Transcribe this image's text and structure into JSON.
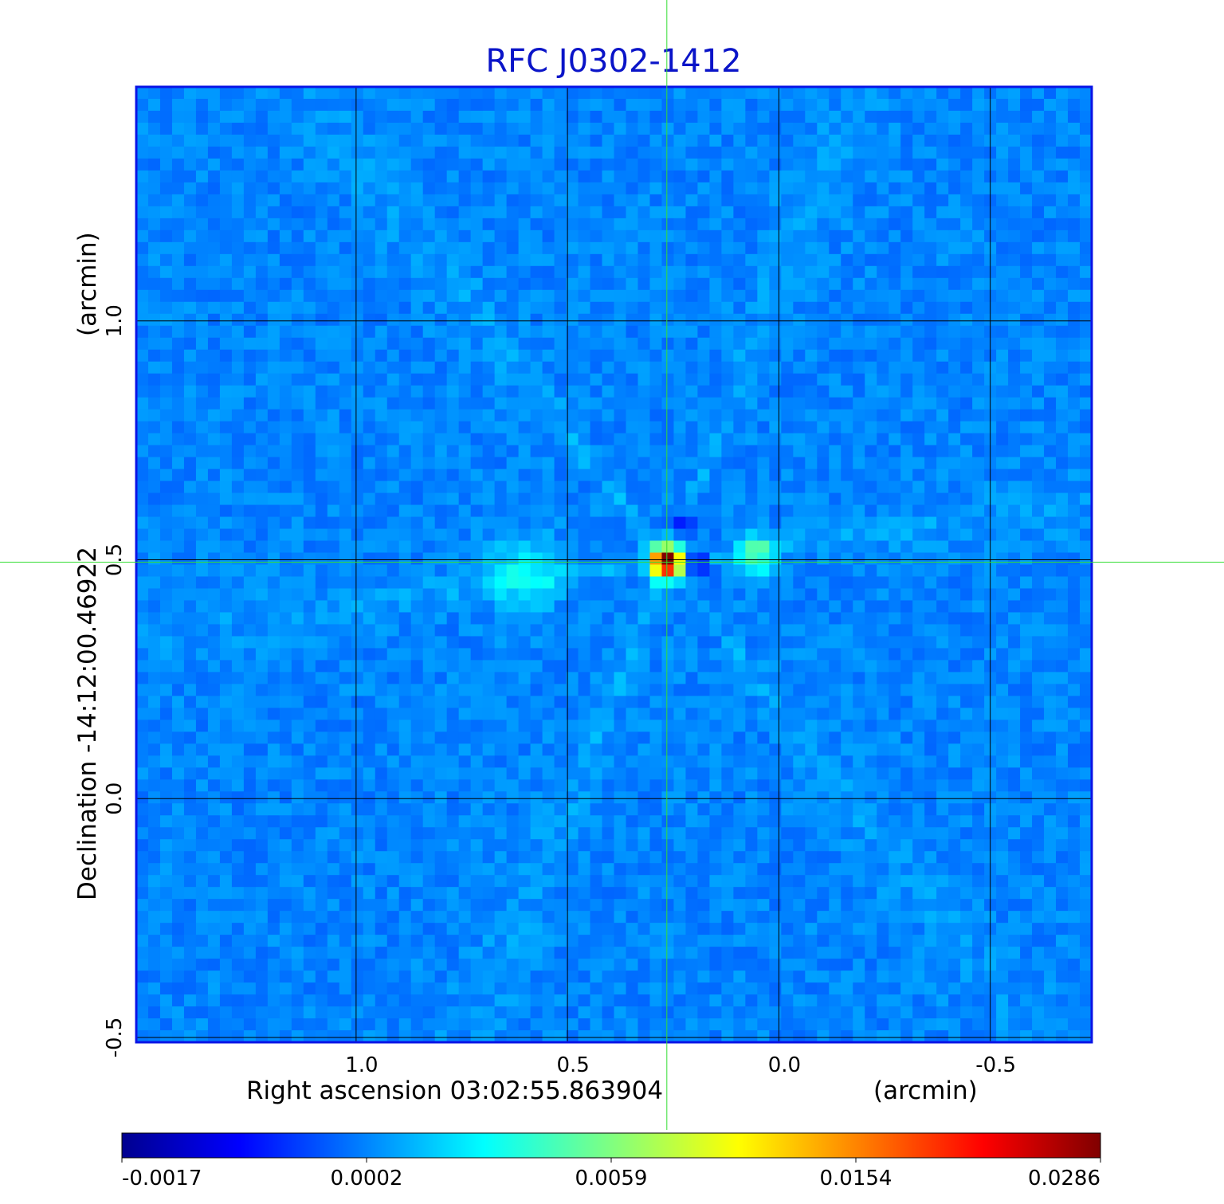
{
  "chart_data": {
    "type": "heatmap",
    "title": "RFC J0302-1412",
    "xlabel": "Right ascension  03:02:55.863904",
    "xunit": "(arcmin)",
    "ylabel": "Declination  -14:12:00.46922",
    "yunit": "(arcmin)",
    "x_range": [
      1.52,
      -0.74
    ],
    "y_range": [
      -0.51,
      1.49
    ],
    "x_ticks": [
      1.0,
      0.5,
      0.0,
      -0.5
    ],
    "x_tick_labels": [
      "1.0",
      "0.5",
      "0.0",
      "-0.5"
    ],
    "y_ticks": [
      -0.5,
      0.0,
      0.5,
      1.0
    ],
    "y_tick_labels": [
      "-0.5",
      "0.0",
      "0.5",
      "1.0"
    ],
    "grid": true,
    "crosshair": {
      "x": 0.265,
      "y": 0.495,
      "color": "#33dd33"
    },
    "colorbar": {
      "position": "bottom",
      "colormap": "jet",
      "tick_labels": [
        "-0.0017",
        "0.0002",
        "0.0059",
        "0.0154",
        "0.0286"
      ],
      "range": [
        -0.0017,
        0.0286
      ]
    },
    "features": [
      {
        "type": "peak",
        "x": 0.265,
        "y": 0.495,
        "value": 0.0286
      },
      {
        "type": "component",
        "x": 0.055,
        "y": 0.51,
        "value": 0.0059
      },
      {
        "type": "component",
        "x": 0.6,
        "y": 0.47,
        "value": 0.0035
      }
    ],
    "colors": {
      "frame": "#0a14e6",
      "grid": "#000000",
      "crosshair": "#33dd33",
      "title": "#0a14c8"
    }
  }
}
